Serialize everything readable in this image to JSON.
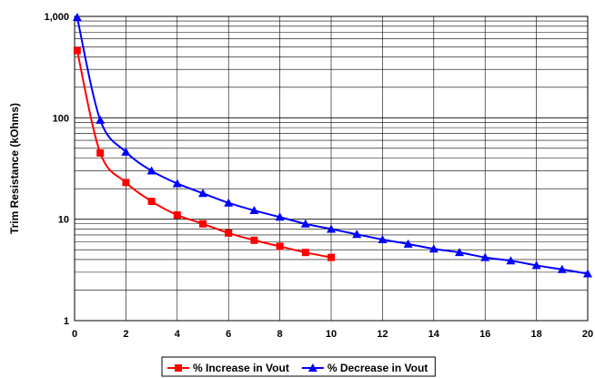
{
  "chart_data": {
    "type": "line",
    "title": "",
    "xlabel": "",
    "ylabel": "Trim Resistance (kOhms)",
    "y_scale": "log",
    "ylim": [
      1,
      1000
    ],
    "xlim": [
      0,
      20
    ],
    "grid": true,
    "legend_position": "bottom",
    "x_ticks": [
      "0",
      "2",
      "4",
      "6",
      "8",
      "10",
      "12",
      "14",
      "16",
      "18",
      "20"
    ],
    "y_ticks": [
      "1",
      "10",
      "100",
      "1,000"
    ],
    "series": [
      {
        "name": "% Increase in Vout",
        "color": "#ff0000",
        "marker": "square",
        "points": [
          [
            0.1,
            460
          ],
          [
            1,
            45
          ],
          [
            2,
            23
          ],
          [
            3,
            15
          ],
          [
            4,
            11
          ],
          [
            5,
            9
          ],
          [
            6,
            7.3
          ],
          [
            7,
            6.2
          ],
          [
            8,
            5.4
          ],
          [
            9,
            4.7
          ],
          [
            10,
            4.2
          ]
        ]
      },
      {
        "name": "% Decrease in Vout",
        "color": "#0000ff",
        "marker": "triangle",
        "points": [
          [
            0.1,
            980
          ],
          [
            1,
            95
          ],
          [
            2,
            46
          ],
          [
            3,
            30
          ],
          [
            4,
            22.5
          ],
          [
            5,
            18
          ],
          [
            6,
            14.5
          ],
          [
            7,
            12.2
          ],
          [
            8,
            10.5
          ],
          [
            9,
            9
          ],
          [
            10,
            8
          ],
          [
            11,
            7.1
          ],
          [
            12,
            6.3
          ],
          [
            13,
            5.7
          ],
          [
            14,
            5.1
          ],
          [
            15,
            4.7
          ],
          [
            16,
            4.2
          ],
          [
            17,
            3.9
          ],
          [
            18,
            3.5
          ],
          [
            19,
            3.2
          ],
          [
            20,
            2.9
          ]
        ]
      }
    ]
  }
}
